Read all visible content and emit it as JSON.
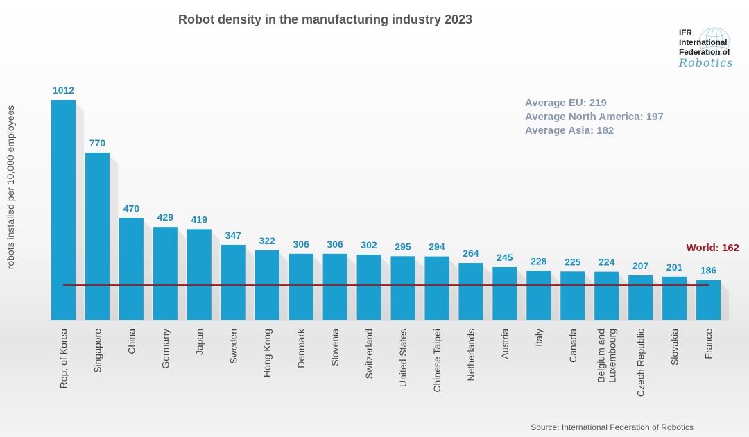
{
  "source": "Source: International Federation of Robotics",
  "logo": {
    "lines": [
      "IFR",
      "International",
      "Federation of"
    ],
    "script": "Robotics",
    "icon": "globe-icon"
  },
  "averages": [
    "Average EU: 219",
    "Average North America: 197",
    "Average Asia: 182"
  ],
  "chart_data": {
    "type": "bar",
    "title": "Robot density in the manufacturing industry 2023",
    "ylabel": "robots installed per 10,000 employees",
    "xlabel": "",
    "ylim": [
      0,
      1012
    ],
    "grid": false,
    "categories": [
      "Rep. of Korea",
      "Singapore",
      "China",
      "Germany",
      "Japan",
      "Sweden",
      "Hong Kong",
      "Denmark",
      "Slovenia",
      "Switzerland",
      "United States",
      "Chinese Taipei",
      "Netherlands",
      "Austria",
      "Italy",
      "Canada",
      "Belgium and\nLuxembourg",
      "Czech Republic",
      "Slovakia",
      "France"
    ],
    "values": [
      1012,
      770,
      470,
      429,
      419,
      347,
      322,
      306,
      306,
      302,
      295,
      294,
      264,
      245,
      228,
      225,
      224,
      207,
      201,
      186
    ],
    "bar_color": "#1a9fd0",
    "reference_line": {
      "label": "World: 162",
      "value": 162,
      "color": "#a01a1f"
    }
  }
}
